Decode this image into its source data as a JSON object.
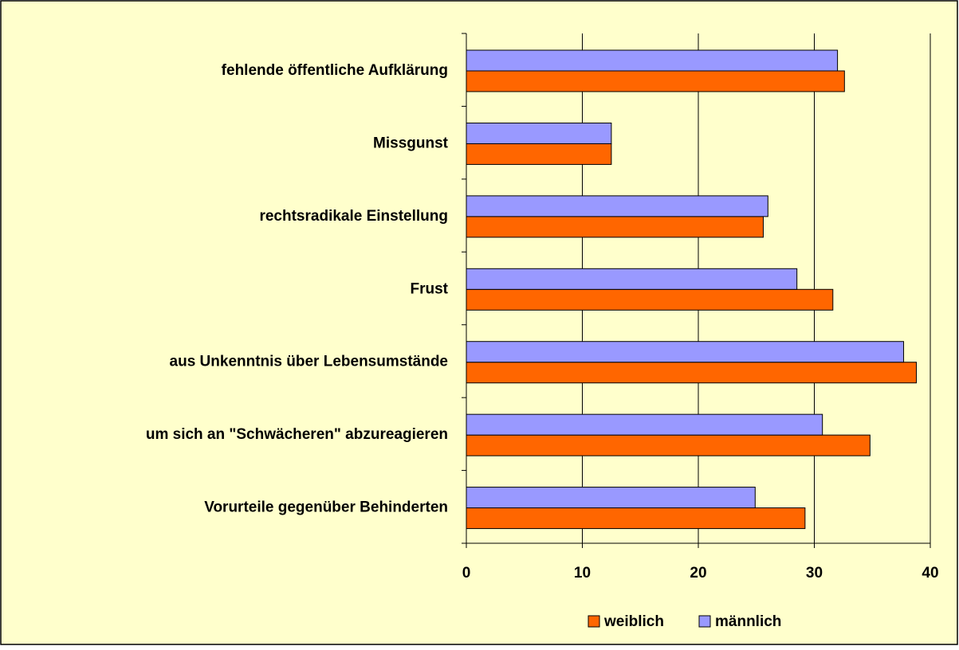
{
  "chart_data": {
    "type": "hbar",
    "categories": [
      "fehlende öffentliche Aufklärung",
      "Missgunst",
      "rechtsradikale Einstellung",
      "Frust",
      "aus Unkenntnis über Lebensumstände",
      "um sich an \"Schwächeren\" abzureagieren",
      "Vorurteile gegenüber Behinderten"
    ],
    "series": [
      {
        "name": "weiblich",
        "color": "#ff6600",
        "values": [
          32.6,
          12.5,
          25.6,
          31.6,
          38.8,
          34.8,
          29.2
        ]
      },
      {
        "name": "männlich",
        "color": "#9999ff",
        "values": [
          32.0,
          12.5,
          26.0,
          28.5,
          37.7,
          30.7,
          24.9
        ]
      }
    ],
    "xlim": [
      0,
      40
    ],
    "xticks": [
      0,
      10,
      20,
      30,
      40
    ],
    "grid": true,
    "legend": "bottom"
  }
}
